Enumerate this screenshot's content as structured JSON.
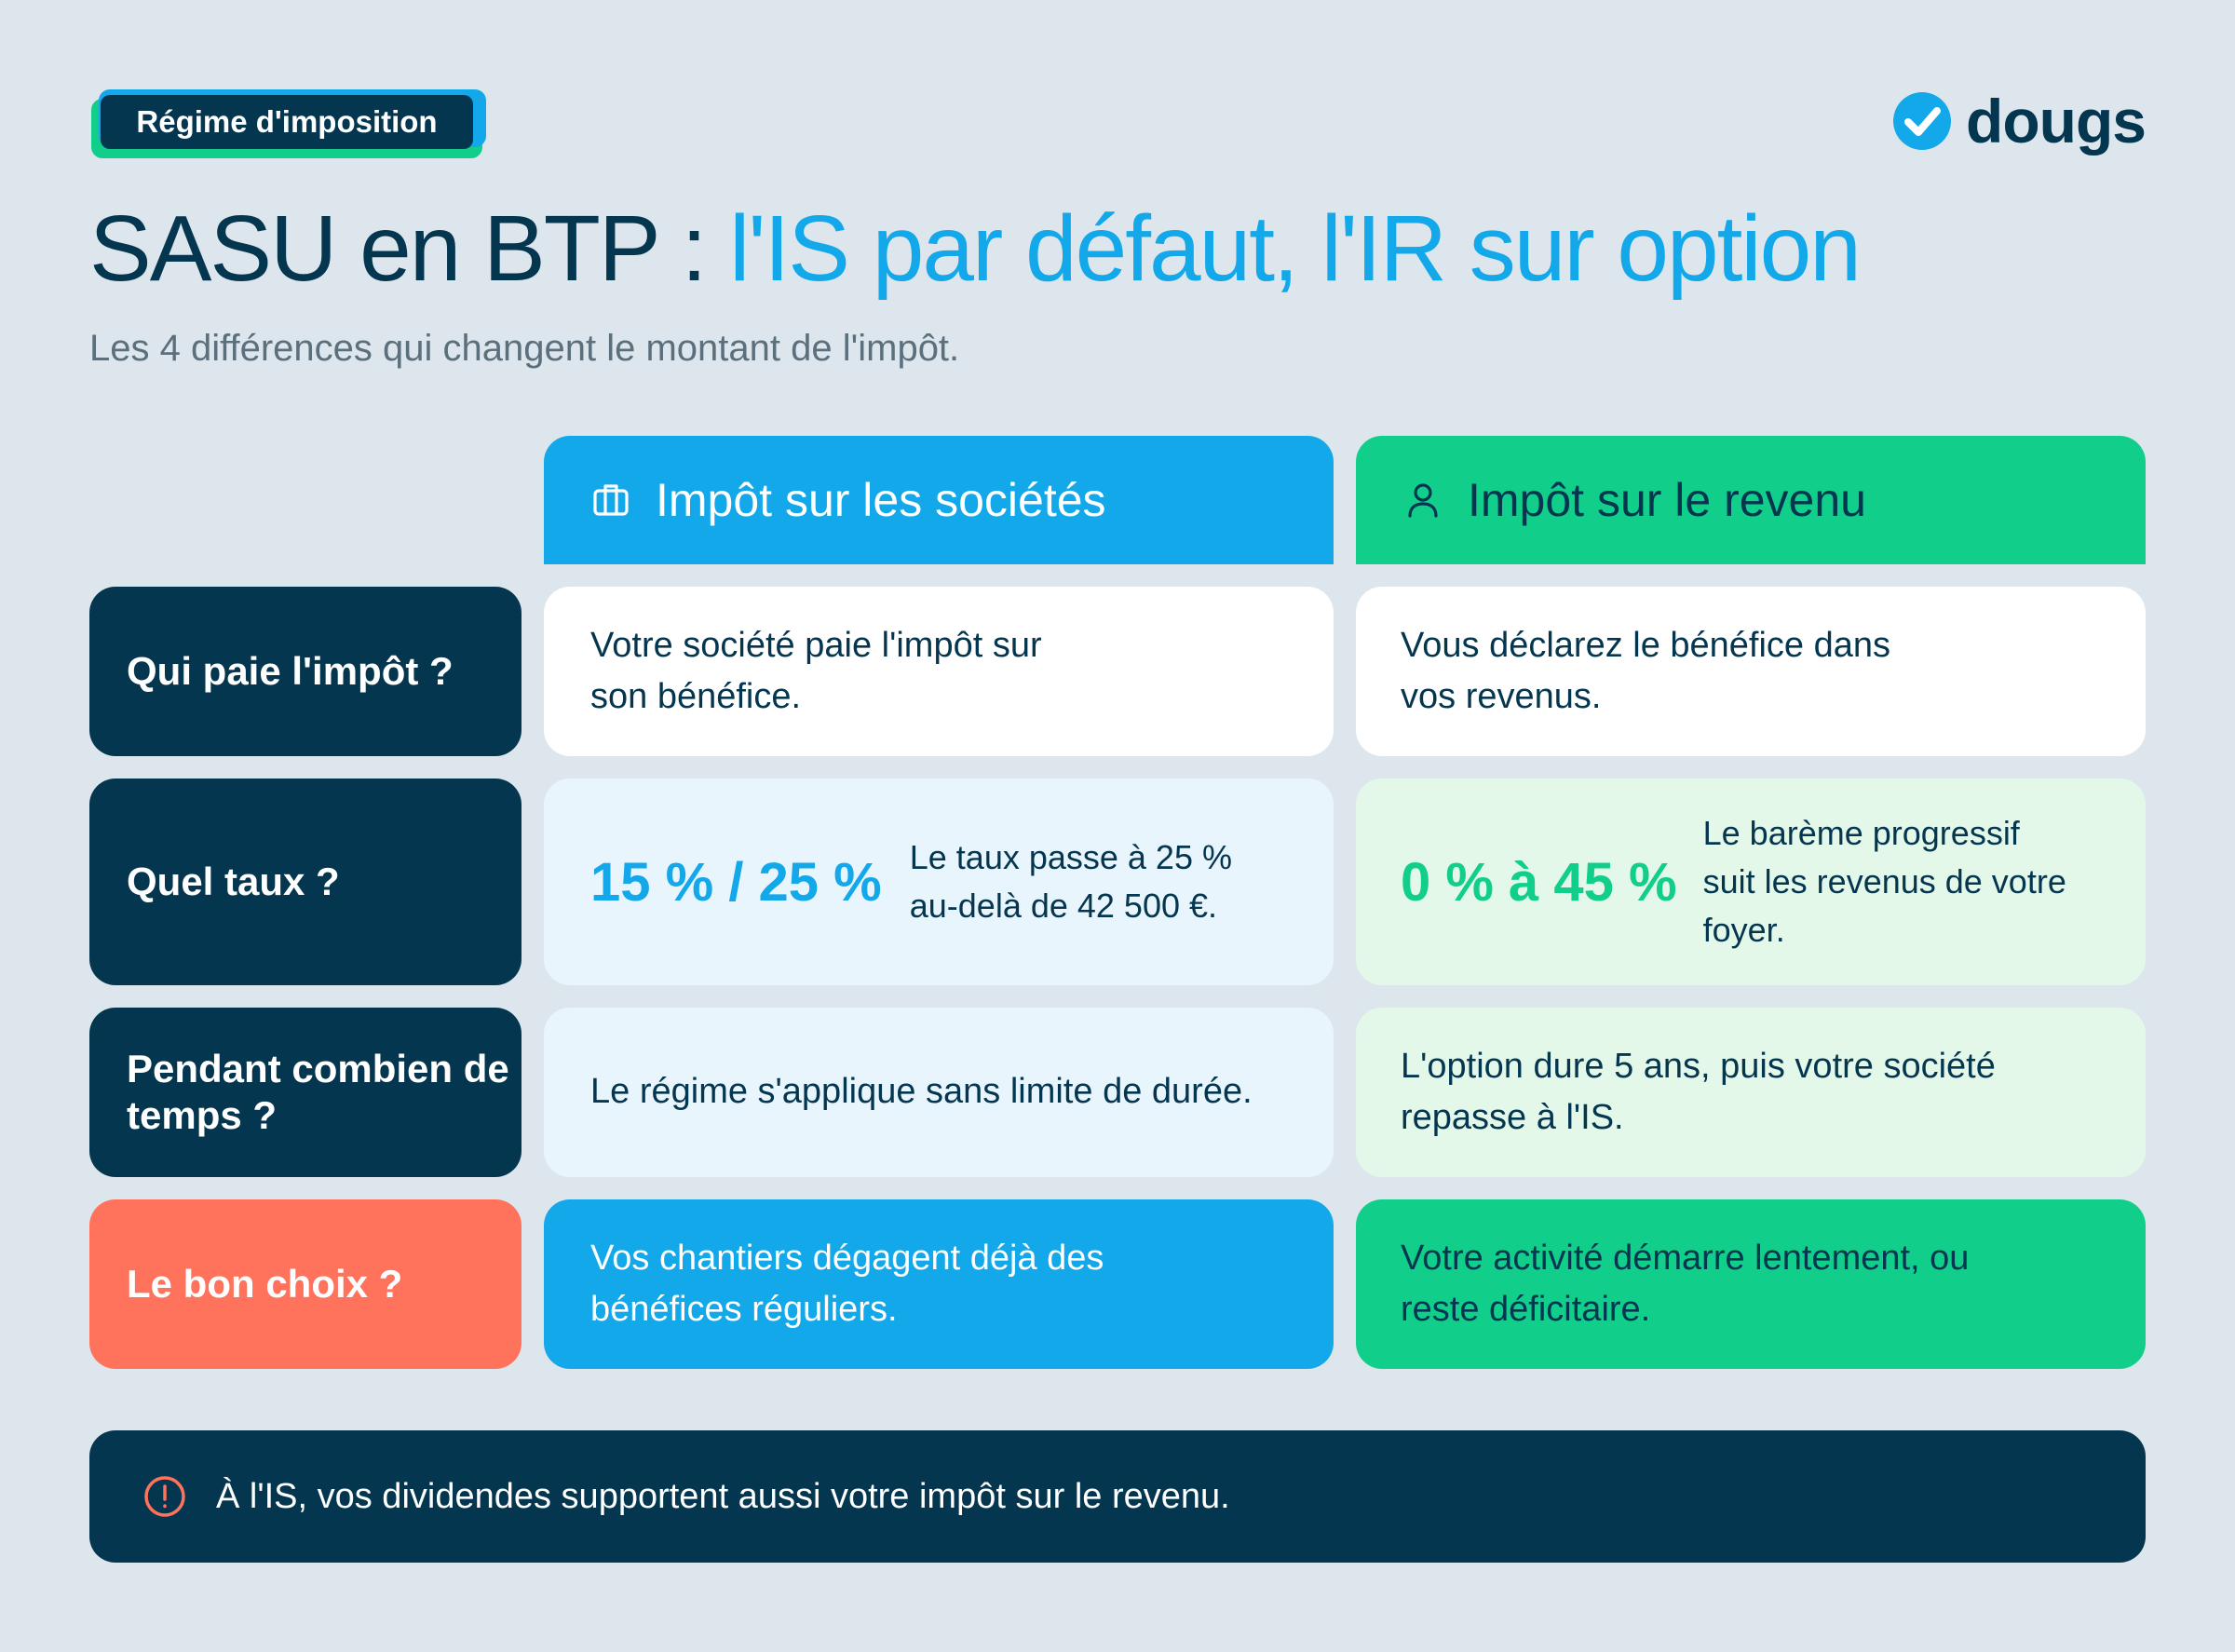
{
  "tag": "Régime d'imposition",
  "logo": {
    "text": "dougs"
  },
  "title": {
    "part1": "SASU en BTP : ",
    "part2": "l'IS par défaut, l'IR sur option"
  },
  "subtitle": "Les 4 différences qui changent le montant de l'impôt.",
  "columns": {
    "is": {
      "label": "Impôt sur les sociétés",
      "icon": "briefcase-icon"
    },
    "ir": {
      "label": "Impôt sur le revenu",
      "icon": "user-icon"
    }
  },
  "rows": [
    {
      "label": "Qui paie l'impôt ?",
      "is_text": "Votre société paie l'impôt sur son bénéfice.",
      "ir_text": "Vous déclarez le bénéfice dans vos revenus."
    },
    {
      "label": "Quel taux ?",
      "is_rate": "15 % / 25 %",
      "is_text": "Le taux passe à 25 % au-delà de 42 500 €.",
      "ir_rate": "0 % à 45 %",
      "ir_text": "Le barème progressif suit les revenus de votre foyer."
    },
    {
      "label": "Pendant combien de temps ?",
      "is_text": "Le régime s'applique sans limite de durée.",
      "ir_text": "L'option dure 5 ans, puis votre société repasse à l'IS."
    },
    {
      "label": "Le bon choix ?",
      "is_text": "Vos chantiers dégagent déjà des bénéfices réguliers.",
      "ir_text": "Votre activité démarre lentement, ou reste déficitaire."
    }
  ],
  "footer": {
    "text": "À l'IS, vos dividendes supportent aussi votre impôt sur le revenu.",
    "icon": "alert-circle-icon"
  },
  "colors": {
    "navy": "#043650",
    "blue": "#12a8ea",
    "green": "#11cf8b",
    "coral": "#ff735c",
    "background": "#dde6ec"
  }
}
